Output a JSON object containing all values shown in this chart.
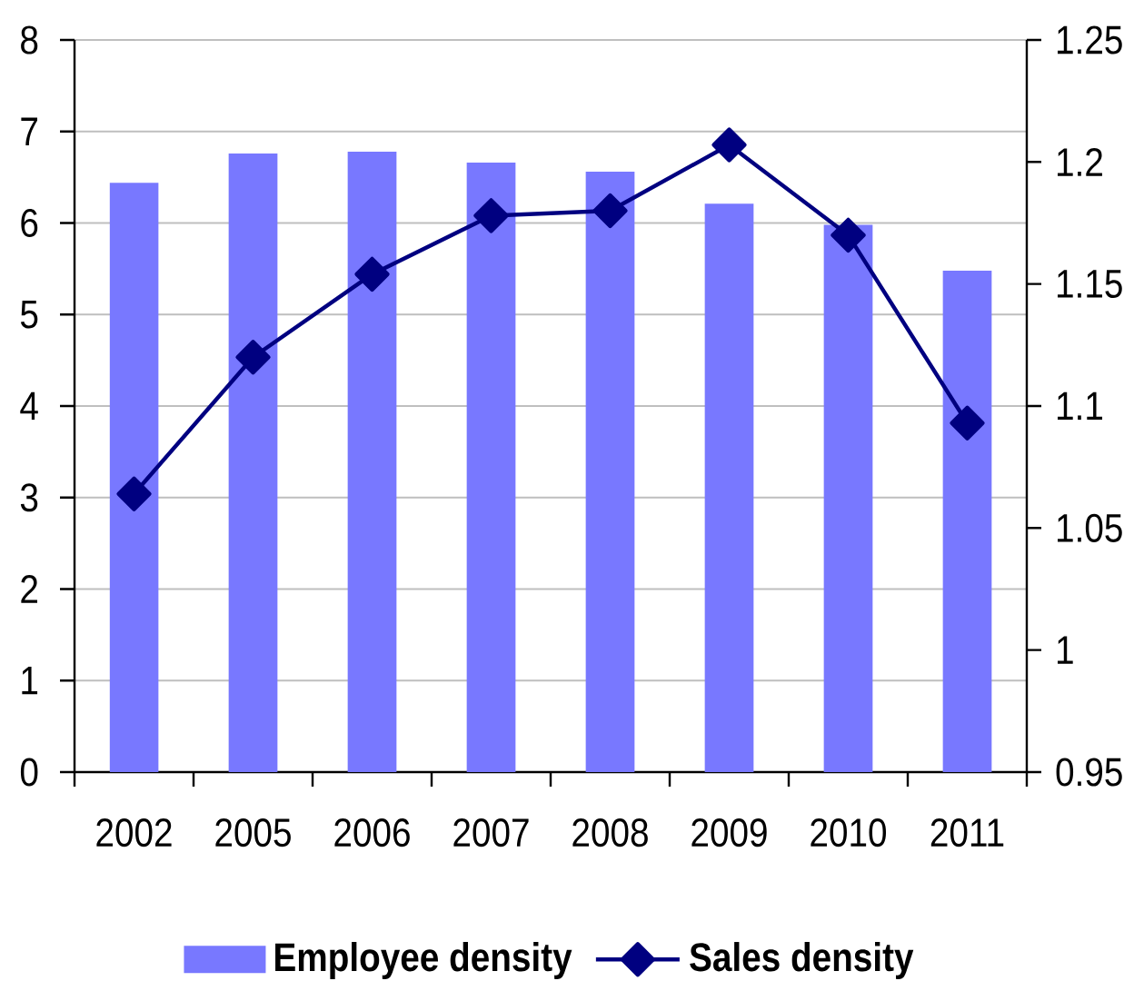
{
  "chart_data": {
    "type": "bar",
    "categories": [
      "2002",
      "2005",
      "2006",
      "2007",
      "2008",
      "2009",
      "2010",
      "2011"
    ],
    "series": [
      {
        "name": "Employee density",
        "color": "#7878ff",
        "values": [
          6.44,
          6.76,
          6.78,
          6.66,
          6.56,
          6.21,
          5.98,
          5.48
        ]
      },
      {
        "name": "Sales density",
        "type": "line",
        "axis": "y2",
        "color": "#000080",
        "marker": "diamond",
        "values": [
          1.064,
          1.12,
          1.154,
          1.178,
          1.18,
          1.207,
          1.17,
          1.093
        ]
      }
    ],
    "ylim": [
      0,
      8
    ],
    "yticks": [
      0,
      1,
      2,
      3,
      4,
      5,
      6,
      7,
      8
    ],
    "y2lim": [
      0.95,
      1.25
    ],
    "y2ticks": [
      0.95,
      1,
      1.05,
      1.1,
      1.15,
      1.2,
      1.25
    ],
    "grid": "y",
    "legend": "bottom"
  }
}
